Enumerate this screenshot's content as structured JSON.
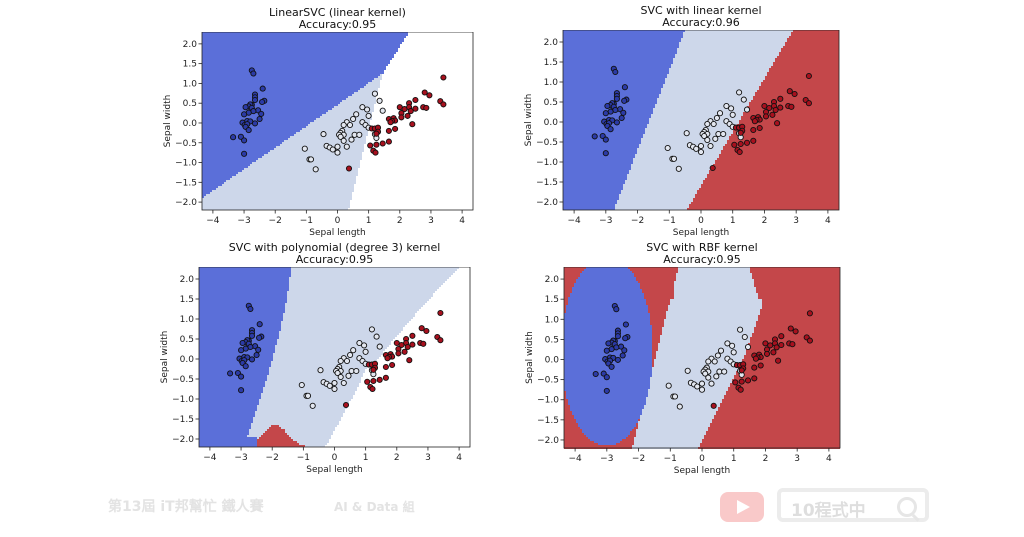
{
  "colors": {
    "class0": "#5b6fd9",
    "class1": "#cdd7ea",
    "class2": "#c4474a",
    "point0": "#2b3aa6",
    "point1": "#e3e7f0",
    "point2": "#a8101e",
    "edge": "#111111"
  },
  "watermark": {
    "left_text": "第13屆 iT邦幫忙 鐵人賽",
    "group_text": "AI & Data 組",
    "search_text": "10程式中",
    "youtube_icon": "play-icon",
    "search_icon": "magnifier-icon"
  },
  "chart_data": [
    {
      "type": "scatter",
      "title": "LinearSVC (linear kernel)",
      "subtitle": "Accuracy:0.95",
      "xlabel": "Sepal length",
      "ylabel": "Sepal width",
      "xlim": [
        -4.35,
        4.35
      ],
      "ylim": [
        -2.2,
        2.3
      ],
      "xticks": [
        "-4",
        "-3",
        "-2",
        "-1",
        "0",
        "1",
        "2",
        "3",
        "4"
      ],
      "yticks": [
        "-2.0",
        "-1.5",
        "-1.0",
        "-0.5",
        "0.0",
        "0.5",
        "1.0",
        "1.5",
        "2.0"
      ],
      "grid": false,
      "kernel": "linearsvc"
    },
    {
      "type": "scatter",
      "title": "SVC with linear kernel",
      "subtitle": "Accuracy:0.96",
      "xlabel": "Sepal length",
      "ylabel": "Sepal width",
      "xlim": [
        -4.35,
        4.35
      ],
      "ylim": [
        -2.2,
        2.3
      ],
      "xticks": [
        "-4",
        "-3",
        "-2",
        "-1",
        "0",
        "1",
        "2",
        "3",
        "4"
      ],
      "yticks": [
        "-2.0",
        "-1.5",
        "-1.0",
        "-0.5",
        "0.0",
        "0.5",
        "1.0",
        "1.5",
        "2.0"
      ],
      "grid": false,
      "kernel": "linear"
    },
    {
      "type": "scatter",
      "title": "SVC with polynomial (degree 3) kernel",
      "subtitle": "Accuracy:0.95",
      "xlabel": "Sepal length",
      "ylabel": "Sepal width",
      "xlim": [
        -4.35,
        4.35
      ],
      "ylim": [
        -2.2,
        2.3
      ],
      "xticks": [
        "-4",
        "-3",
        "-2",
        "-1",
        "0",
        "1",
        "2",
        "3",
        "4"
      ],
      "yticks": [
        "-2.0",
        "-1.5",
        "-1.0",
        "-0.5",
        "0.0",
        "0.5",
        "1.0",
        "1.5",
        "2.0"
      ],
      "grid": false,
      "kernel": "poly"
    },
    {
      "type": "scatter",
      "title": "SVC with RBF kernel",
      "subtitle": "Accuracy:0.95",
      "xlabel": "Sepal length",
      "ylabel": "Sepal width",
      "xlim": [
        -4.35,
        4.35
      ],
      "ylim": [
        -2.2,
        2.3
      ],
      "xticks": [
        "-4",
        "-3",
        "-2",
        "-1",
        "0",
        "1",
        "2",
        "3",
        "4"
      ],
      "yticks": [
        "-2.0",
        "-1.5",
        "-1.0",
        "-0.5",
        "0.0",
        "0.5",
        "1.0",
        "1.5",
        "2.0"
      ],
      "grid": false,
      "kernel": "rbf"
    }
  ],
  "points": {
    "class0": [
      [
        -2.75,
        1.33
      ],
      [
        -2.7,
        1.25
      ],
      [
        -2.4,
        0.87
      ],
      [
        -2.65,
        0.72
      ],
      [
        -2.65,
        0.65
      ],
      [
        -2.65,
        0.58
      ],
      [
        -2.35,
        0.56
      ],
      [
        -2.42,
        0.53
      ],
      [
        -2.75,
        0.46
      ],
      [
        -2.8,
        0.47
      ],
      [
        -2.85,
        0.42
      ],
      [
        -2.95,
        0.4
      ],
      [
        -2.75,
        0.38
      ],
      [
        -2.55,
        0.32
      ],
      [
        -2.7,
        0.3
      ],
      [
        -2.85,
        0.26
      ],
      [
        -2.45,
        0.23
      ],
      [
        -3.0,
        0.22
      ],
      [
        -2.9,
        0.05
      ],
      [
        -2.8,
        0.04
      ],
      [
        -3.05,
        0.01
      ],
      [
        -2.98,
        -0.05
      ],
      [
        -2.9,
        -0.03
      ],
      [
        -2.65,
        -0.01
      ],
      [
        -2.5,
        0.1
      ],
      [
        -2.95,
        -0.1
      ],
      [
        -2.85,
        -0.18
      ],
      [
        -3.35,
        -0.36
      ],
      [
        -3.1,
        -0.35
      ],
      [
        -3.0,
        -0.44
      ],
      [
        -3.0,
        -0.78
      ]
    ],
    "class1": [
      [
        1.2,
        0.74
      ],
      [
        1.35,
        0.56
      ],
      [
        1.45,
        0.31
      ],
      [
        0.8,
        0.4
      ],
      [
        0.95,
        0.34
      ],
      [
        0.6,
        0.22
      ],
      [
        0.5,
        0.1
      ],
      [
        1.0,
        0.18
      ],
      [
        0.8,
        0.02
      ],
      [
        0.3,
        0.02
      ],
      [
        0.2,
        -0.05
      ],
      [
        0.4,
        -0.05
      ],
      [
        0.9,
        -0.05
      ],
      [
        1.0,
        -0.12
      ],
      [
        0.15,
        -0.2
      ],
      [
        0.1,
        -0.25
      ],
      [
        0.2,
        -0.3
      ],
      [
        0.05,
        -0.3
      ],
      [
        0.55,
        -0.3
      ],
      [
        0.7,
        -0.3
      ],
      [
        0.1,
        -0.35
      ],
      [
        0.45,
        -0.42
      ],
      [
        0.2,
        -0.45
      ],
      [
        -0.45,
        -0.28
      ],
      [
        -0.35,
        -0.58
      ],
      [
        -0.25,
        -0.62
      ],
      [
        -0.15,
        -0.67
      ],
      [
        0.0,
        -0.6
      ],
      [
        0.3,
        -0.6
      ],
      [
        0.0,
        -0.75
      ],
      [
        -1.05,
        -0.65
      ],
      [
        -0.9,
        -0.92
      ],
      [
        -0.85,
        -0.92
      ],
      [
        -0.7,
        -1.17
      ],
      [
        1.2,
        -0.28
      ],
      [
        1.25,
        -0.38
      ]
    ],
    "class2": [
      [
        3.4,
        1.15
      ],
      [
        2.8,
        0.77
      ],
      [
        2.95,
        0.7
      ],
      [
        2.5,
        0.58
      ],
      [
        2.3,
        0.5
      ],
      [
        3.3,
        0.55
      ],
      [
        3.4,
        0.47
      ],
      [
        2.0,
        0.4
      ],
      [
        2.3,
        0.4
      ],
      [
        2.15,
        0.35
      ],
      [
        2.5,
        0.36
      ],
      [
        2.75,
        0.4
      ],
      [
        2.85,
        0.38
      ],
      [
        2.05,
        0.25
      ],
      [
        2.35,
        0.3
      ],
      [
        2.25,
        0.18
      ],
      [
        2.05,
        0.14
      ],
      [
        1.65,
        0.1
      ],
      [
        1.8,
        0.12
      ],
      [
        1.85,
        0.06
      ],
      [
        1.75,
        0.05
      ],
      [
        1.7,
        0.02
      ],
      [
        2.4,
        -0.03
      ],
      [
        1.1,
        -0.14
      ],
      [
        1.2,
        -0.14
      ],
      [
        1.3,
        -0.12
      ],
      [
        1.3,
        -0.22
      ],
      [
        1.25,
        -0.27
      ],
      [
        1.65,
        -0.2
      ],
      [
        1.85,
        -0.15
      ],
      [
        1.05,
        -0.57
      ],
      [
        1.25,
        -0.55
      ],
      [
        1.45,
        -0.52
      ],
      [
        1.65,
        -0.47
      ],
      [
        1.15,
        -0.7
      ],
      [
        1.22,
        -0.75
      ],
      [
        0.37,
        -1.15
      ]
    ]
  }
}
